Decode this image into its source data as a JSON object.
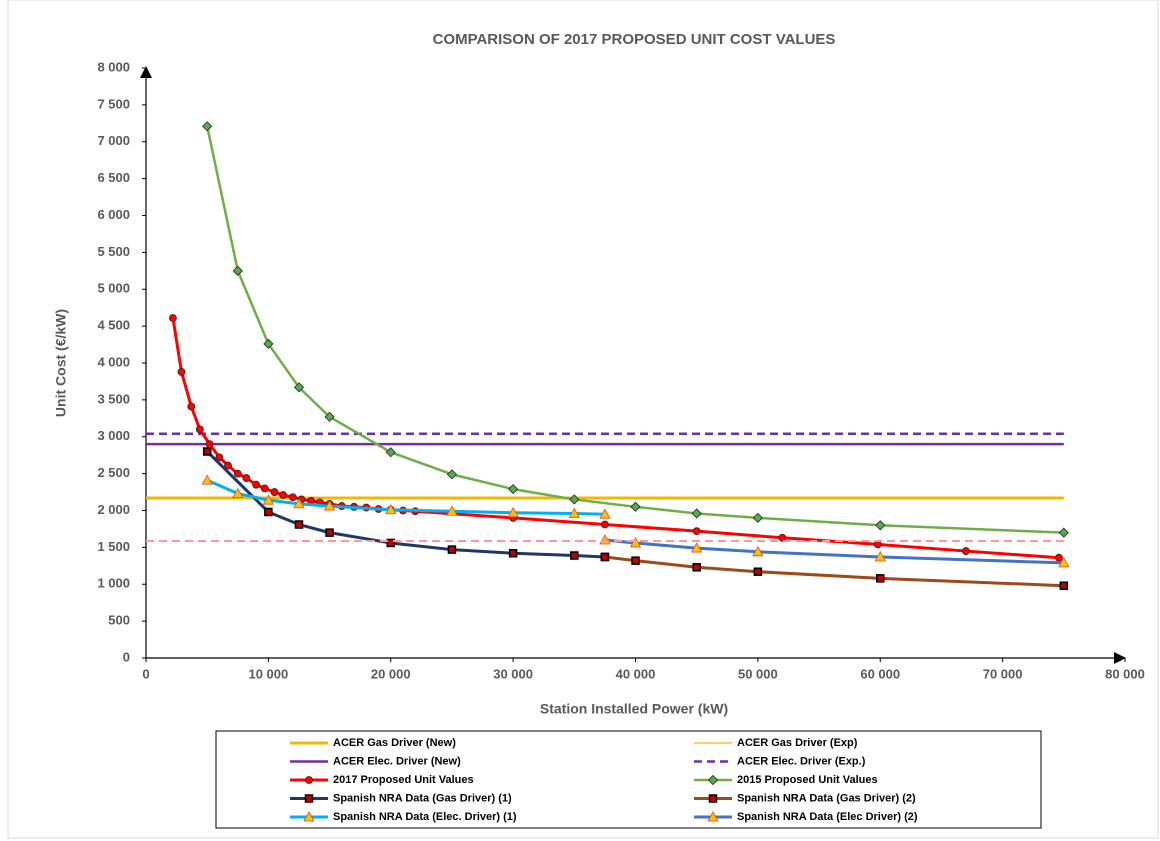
{
  "chart_data": {
    "type": "line",
    "title": "COMPARISON OF 2017 PROPOSED UNIT COST VALUES",
    "x_label": "Station Installed Power (kW)",
    "y_label": "Unit Cost (€/kW)",
    "xlim": [
      0,
      80000
    ],
    "ylim": [
      0,
      8000
    ],
    "xticks": [
      0,
      {
        "value": 10000,
        "label": "10 000"
      },
      {
        "value": 20000,
        "label": "20 000"
      },
      {
        "value": 30000,
        "label": "30 000"
      },
      {
        "value": 40000,
        "label": "40 000"
      },
      {
        "value": 50000,
        "label": "50 000"
      },
      {
        "value": 60000,
        "label": "60 000"
      },
      {
        "value": 70000,
        "label": "70 000"
      },
      {
        "value": 80000,
        "label": "80 000"
      }
    ],
    "yticks": [
      0,
      500,
      {
        "value": 1000,
        "label": "1 000"
      },
      {
        "value": 1500,
        "label": "1 500"
      },
      {
        "value": 2000,
        "label": "2 000"
      },
      {
        "value": 2500,
        "label": "2 500"
      },
      {
        "value": 3000,
        "label": "3 000"
      },
      {
        "value": 3500,
        "label": "3 500"
      },
      {
        "value": 4000,
        "label": "4 000"
      },
      {
        "value": 4500,
        "label": "4 500"
      },
      {
        "value": 5000,
        "label": "5 000"
      },
      {
        "value": 5500,
        "label": "5 500"
      },
      {
        "value": 6000,
        "label": "6 000"
      },
      {
        "value": 6500,
        "label": "6 500"
      },
      {
        "value": 7000,
        "label": "7 000"
      },
      {
        "value": 7500,
        "label": "7 500"
      },
      {
        "value": 8000,
        "label": "8 000"
      }
    ],
    "grid": false,
    "series": [
      {
        "name": "ACER Gas Driver (New)",
        "color": "#f5b800",
        "width": 3,
        "x": [
          0,
          75000
        ],
        "values": [
          2170,
          2170
        ]
      },
      {
        "name": "ACER Gas Driver (Exp)",
        "color": "#f5b800",
        "width": 1.2,
        "x": [
          0,
          75000
        ],
        "values": [
          2170,
          2170
        ]
      },
      {
        "name": "ACER Elec. Driver (New)",
        "color": "#7030a0",
        "width": 2.5,
        "x": [
          0,
          75000
        ],
        "values": [
          2900,
          2900
        ]
      },
      {
        "name": "ACER Elec. Driver (Exp.)",
        "color": "#7030a0",
        "width": 2.5,
        "dash": true,
        "x": [
          0,
          75000
        ],
        "values": [
          3040,
          3040
        ]
      },
      {
        "name": "2017 Proposed Unit Values",
        "color": "#ff0000",
        "width": 3,
        "marker": "circle",
        "marker_fill": "#ff0000",
        "x": [
          2200,
          2900,
          3700,
          4400,
          5200,
          6000,
          6700,
          7500,
          8200,
          9000,
          9700,
          10500,
          11200,
          12000,
          12700,
          13500,
          14200,
          15000,
          16000,
          17000,
          18000,
          19000,
          20000,
          21000,
          22000,
          30000,
          37500,
          45000,
          52000,
          59800,
          67000,
          74600
        ],
        "values": [
          4610,
          3880,
          3410,
          3100,
          2900,
          2720,
          2610,
          2500,
          2440,
          2350,
          2300,
          2250,
          2210,
          2180,
          2150,
          2130,
          2110,
          2090,
          2060,
          2050,
          2040,
          2020,
          2010,
          2000,
          1990,
          1900,
          1810,
          1720,
          1630,
          1540,
          1450,
          1360
        ]
      },
      {
        "name": "2015 Proposed Unit Values",
        "color": "#70ad47",
        "width": 2.5,
        "marker": "diamond",
        "marker_fill": "#4caf50",
        "x": [
          5000,
          7500,
          10000,
          12500,
          15000,
          20000,
          25000,
          30000,
          35000,
          40000,
          45000,
          50000,
          60000,
          75000
        ],
        "values": [
          7210,
          5250,
          4260,
          3670,
          3270,
          2790,
          2490,
          2290,
          2150,
          2050,
          1960,
          1900,
          1800,
          1700
        ]
      },
      {
        "name": "Spanish NRA Data (Gas Driver) (1)",
        "color": "#1f3864",
        "width": 3,
        "marker": "square",
        "marker_fill": "#c00000",
        "x": [
          5000,
          10000,
          12500,
          15000,
          20000,
          25000,
          30000,
          35000,
          37500
        ],
        "values": [
          2800,
          1980,
          1810,
          1700,
          1560,
          1470,
          1420,
          1390,
          1370
        ]
      },
      {
        "name": "Spanish NRA Data (Gas Driver) (2)",
        "color": "#9c4a1a",
        "width": 3,
        "marker": "square",
        "marker_fill": "#c00000",
        "x": [
          37500,
          40000,
          45000,
          50000,
          60000,
          75000
        ],
        "values": [
          1370,
          1320,
          1230,
          1170,
          1080,
          980
        ]
      },
      {
        "name": "Spanish NRA Data (Elec. Driver) (1)",
        "color": "#00b0f0",
        "width": 3,
        "marker": "triangle",
        "marker_fill": "#ffc000",
        "x": [
          5000,
          7500,
          10000,
          12500,
          15000,
          20000,
          25000,
          30000,
          35000,
          37500
        ],
        "values": [
          2410,
          2230,
          2140,
          2090,
          2060,
          2010,
          1990,
          1970,
          1960,
          1950
        ]
      },
      {
        "name": "Spanish NRA Data (Elec Driver) (2)",
        "color": "#4472c4",
        "width": 3,
        "marker": "triangle",
        "marker_fill": "#ffc000",
        "x": [
          37500,
          40000,
          45000,
          50000,
          60000,
          75000
        ],
        "values": [
          1600,
          1560,
          1490,
          1440,
          1370,
          1290
        ]
      },
      {
        "color": "#ff9999",
        "width": 2,
        "dash": true,
        "x": [
          0,
          75000
        ],
        "values": [
          1586,
          1586
        ]
      }
    ]
  }
}
